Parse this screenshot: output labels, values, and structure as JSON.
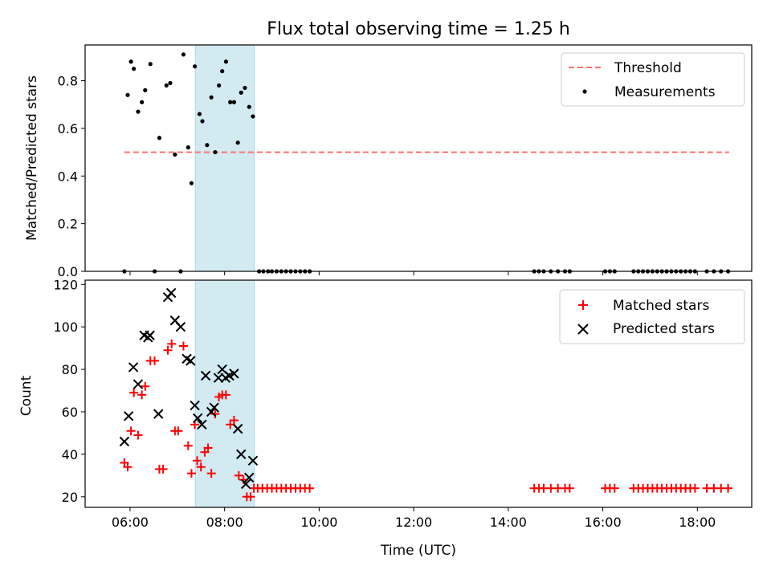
{
  "figure": {
    "title": "Flux total observing time = 1.25 h",
    "xlabel": "Time (UTC)",
    "x_ticks": [
      "06:00",
      "08:00",
      "10:00",
      "12:00",
      "14:00",
      "16:00",
      "18:00"
    ],
    "x_tick_hours": [
      6,
      8,
      10,
      12,
      14,
      16,
      18
    ],
    "xlim_hours": [
      5.05,
      19.15
    ],
    "shaded_span_hours": [
      7.38,
      8.63
    ],
    "colors": {
      "shade": "#add8e6",
      "threshold": "#ff6f6f",
      "matched": "#ff0000",
      "predicted": "#000000",
      "measurement": "#000000"
    }
  },
  "chart_data": [
    {
      "type": "scatter",
      "ylabel": "Matched/Predicted stars",
      "ylim": [
        0,
        0.95
      ],
      "y_ticks": [
        "0.0",
        "0.2",
        "0.4",
        "0.6",
        "0.8"
      ],
      "y_tick_values": [
        0,
        0.2,
        0.4,
        0.6,
        0.8
      ],
      "legend_position": "top-right",
      "threshold": {
        "name": "Threshold",
        "y": 0.5,
        "x_range": [
          5.88,
          18.67
        ],
        "style": "dashed"
      },
      "series": [
        {
          "name": "Measurements",
          "x": [
            5.88,
            5.95,
            6.02,
            6.08,
            6.17,
            6.25,
            6.32,
            6.43,
            6.52,
            6.62,
            6.77,
            6.85,
            6.95,
            7.07,
            7.13,
            7.23,
            7.3,
            7.37,
            7.47,
            7.53,
            7.63,
            7.72,
            7.8,
            7.88,
            7.95,
            8.03,
            8.12,
            8.2,
            8.28,
            8.35,
            8.43,
            8.52,
            8.6,
            8.73,
            8.82,
            8.92,
            9.0,
            9.1,
            9.2,
            9.3,
            9.4,
            9.5,
            9.6,
            9.7,
            9.8
          ],
          "y": [
            0.0,
            0.74,
            0.88,
            0.85,
            0.67,
            0.71,
            0.76,
            0.87,
            0.0,
            0.56,
            0.78,
            0.79,
            0.49,
            0.0,
            0.91,
            0.52,
            0.37,
            0.86,
            0.66,
            0.63,
            0.53,
            0.73,
            0.5,
            0.78,
            0.84,
            0.88,
            0.71,
            0.71,
            0.54,
            0.75,
            0.77,
            0.69,
            0.65,
            0,
            0,
            0,
            0,
            0,
            0,
            0,
            0,
            0,
            0,
            0,
            0
          ]
        },
        {
          "name": "",
          "x": [
            14.55,
            14.65,
            14.75,
            14.9,
            15.05,
            15.2,
            15.3,
            16.05,
            16.15,
            16.25,
            16.65,
            16.75,
            16.85,
            16.95,
            17.05,
            17.15,
            17.25,
            17.35,
            17.45,
            17.55,
            17.65,
            17.75,
            17.85,
            17.95,
            18.2,
            18.35,
            18.5,
            18.65
          ],
          "y": [
            0,
            0,
            0,
            0,
            0,
            0,
            0,
            0,
            0,
            0,
            0,
            0,
            0,
            0,
            0,
            0,
            0,
            0,
            0,
            0,
            0,
            0,
            0,
            0,
            0,
            0,
            0,
            0
          ]
        }
      ]
    },
    {
      "type": "scatter",
      "ylabel": "Count",
      "ylim": [
        15,
        122
      ],
      "y_ticks": [
        "20",
        "40",
        "60",
        "80",
        "100",
        "120"
      ],
      "y_tick_values": [
        20,
        40,
        60,
        80,
        100,
        120
      ],
      "legend_position": "top-right",
      "series": [
        {
          "name": "Matched stars",
          "marker": "plus",
          "x": [
            5.88,
            5.95,
            6.02,
            6.08,
            6.17,
            6.25,
            6.32,
            6.43,
            6.52,
            6.62,
            6.7,
            6.8,
            6.88,
            6.95,
            7.02,
            7.13,
            7.23,
            7.3,
            7.37,
            7.42,
            7.5,
            7.58,
            7.65,
            7.72,
            7.8,
            7.88,
            7.95,
            8.03,
            8.12,
            8.2,
            8.3,
            8.4,
            8.47,
            8.55,
            8.62,
            8.7,
            8.8,
            8.9,
            9.0,
            9.1,
            9.2,
            9.3,
            9.4,
            9.5,
            9.6,
            9.7,
            9.8,
            14.55,
            14.65,
            14.75,
            14.9,
            15.05,
            15.2,
            15.3,
            16.05,
            16.15,
            16.25,
            16.65,
            16.75,
            16.85,
            16.95,
            17.05,
            17.15,
            17.25,
            17.35,
            17.45,
            17.55,
            17.65,
            17.75,
            17.85,
            17.95,
            18.2,
            18.35,
            18.5,
            18.65
          ],
          "y": [
            36,
            34,
            51,
            69,
            49,
            68,
            72,
            84,
            84,
            33,
            33,
            89,
            92,
            51,
            51,
            91,
            44,
            31,
            54,
            37,
            34,
            41,
            43,
            31,
            59,
            67,
            68,
            68,
            54,
            56,
            30,
            28,
            20,
            20,
            24,
            24,
            24,
            24,
            24,
            24,
            24,
            24,
            24,
            24,
            24,
            24,
            24,
            24,
            24,
            24,
            24,
            24,
            24,
            24,
            24,
            24,
            24,
            24,
            24,
            24,
            24,
            24,
            24,
            24,
            24,
            24,
            24,
            24,
            24,
            24,
            24,
            24,
            24,
            24,
            24
          ]
        },
        {
          "name": "Predicted stars",
          "marker": "x",
          "x": [
            5.88,
            5.97,
            6.07,
            6.17,
            6.3,
            6.38,
            6.42,
            6.6,
            6.8,
            6.87,
            6.95,
            7.07,
            7.2,
            7.28,
            7.37,
            7.43,
            7.52,
            7.6,
            7.72,
            7.78,
            7.87,
            7.95,
            8.02,
            8.1,
            8.2,
            8.28,
            8.35,
            8.45,
            8.52,
            8.6
          ],
          "y": [
            46,
            58,
            81,
            73,
            96,
            95,
            96,
            59,
            114,
            116,
            103,
            100,
            85,
            84,
            63,
            57,
            54,
            77,
            60,
            62,
            76,
            80,
            76,
            77,
            78,
            52,
            40,
            26,
            29,
            37
          ]
        }
      ]
    }
  ]
}
